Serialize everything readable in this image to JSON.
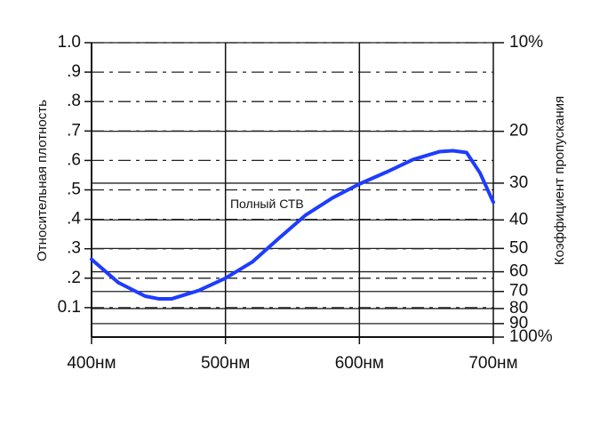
{
  "chart_data": {
    "type": "line",
    "ylabel": "Относительная плотность",
    "y2label": "Коэффициент пропускания",
    "annotations": [
      {
        "text": "Полный СТВ",
        "x": 531,
        "y": 0.45
      }
    ],
    "xlim": [
      400,
      700
    ],
    "xticks": [
      {
        "value": 400,
        "label": "400нм"
      },
      {
        "value": 500,
        "label": "500нм"
      },
      {
        "value": 600,
        "label": "600нм"
      },
      {
        "value": 700,
        "label": "700нм"
      }
    ],
    "ylim": [
      0,
      1.0
    ],
    "yticks": [
      {
        "value": 1.0,
        "label": "1.0"
      },
      {
        "value": 0.9,
        "label": ".9"
      },
      {
        "value": 0.8,
        "label": ".8"
      },
      {
        "value": 0.7,
        "label": ".7"
      },
      {
        "value": 0.6,
        "label": ".6"
      },
      {
        "value": 0.5,
        "label": ".5"
      },
      {
        "value": 0.4,
        "label": ".4"
      },
      {
        "value": 0.3,
        "label": ".3"
      },
      {
        "value": 0.2,
        "label": ".2"
      },
      {
        "value": 0.1,
        "label": "0.1"
      }
    ],
    "y2lim": [
      100,
      10
    ],
    "y2log": true,
    "y2ticks": [
      {
        "value": 10,
        "label": "10%"
      },
      20,
      30,
      40,
      50,
      60,
      70,
      80,
      90,
      {
        "value": 100,
        "label": "100%"
      }
    ],
    "grid": true,
    "series": [
      {
        "color": "#1e3cff",
        "x": [
          400,
          420,
          440,
          450,
          460,
          480,
          500,
          520,
          540,
          560,
          580,
          600,
          620,
          640,
          660,
          670,
          680,
          690,
          700
        ],
        "values": [
          0.264,
          0.185,
          0.139,
          0.13,
          0.13,
          0.158,
          0.2,
          0.255,
          0.336,
          0.415,
          0.473,
          0.52,
          0.56,
          0.603,
          0.63,
          0.633,
          0.627,
          0.558,
          0.458
        ]
      }
    ]
  }
}
